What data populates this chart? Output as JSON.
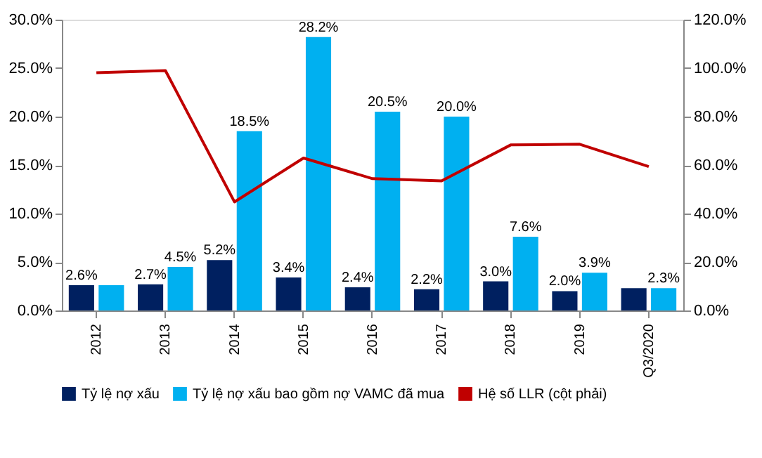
{
  "chart_data": {
    "type": "bar",
    "categories": [
      "2012",
      "2013",
      "2014",
      "2015",
      "2016",
      "2017",
      "2018",
      "2019",
      "Q3/2020"
    ],
    "series": [
      {
        "name": "Tỷ lệ nợ xấu",
        "color": "#002060",
        "values": [
          2.6,
          2.7,
          5.2,
          3.4,
          2.4,
          2.2,
          3.0,
          2.0,
          2.3
        ],
        "value_labels": [
          "2.6%",
          "2.7%",
          "5.2%",
          "3.4%",
          "2.4%",
          "2.2%",
          "3.0%",
          "2.0%",
          null
        ]
      },
      {
        "name": "Tỷ lệ nợ xấu bao gồm nợ VAMC đã mua",
        "color": "#00b0f0",
        "values": [
          2.6,
          4.5,
          18.5,
          28.2,
          20.5,
          20.0,
          7.6,
          3.9,
          2.3
        ],
        "value_labels": [
          null,
          "4.5%",
          "18.5%",
          "28.2%",
          "20.5%",
          "20.0%",
          "7.6%",
          "3.9%",
          "2.3%"
        ]
      },
      {
        "name": "Hệ số LLR (cột phải)",
        "type": "line",
        "axis": "y2",
        "color": "#c00000",
        "values": [
          98.1,
          99.0,
          44.8,
          62.9,
          54.4,
          53.5,
          68.3,
          68.6,
          59.4
        ]
      }
    ],
    "ylim": [
      0,
      30
    ],
    "yticks": [
      {
        "value": 0,
        "label": "0.0%"
      },
      {
        "value": 5,
        "label": "5.0%"
      },
      {
        "value": 10,
        "label": "10.0%"
      },
      {
        "value": 15,
        "label": "15.0%"
      },
      {
        "value": 20,
        "label": "20.0%"
      },
      {
        "value": 25,
        "label": "25.0%"
      },
      {
        "value": 30,
        "label": "30.0%"
      }
    ],
    "y2lim": [
      0,
      120
    ],
    "y2ticks": [
      {
        "value": 0,
        "label": "0.0%"
      },
      {
        "value": 20,
        "label": "20.0%"
      },
      {
        "value": 40,
        "label": "40.0%"
      },
      {
        "value": 60,
        "label": "60.0%"
      },
      {
        "value": 80,
        "label": "80.0%"
      },
      {
        "value": 100,
        "label": "100.0%"
      },
      {
        "value": 120,
        "label": "120.0%"
      }
    ],
    "grid": false,
    "legend": "bottom",
    "line_style": "solid",
    "marker": "none"
  }
}
